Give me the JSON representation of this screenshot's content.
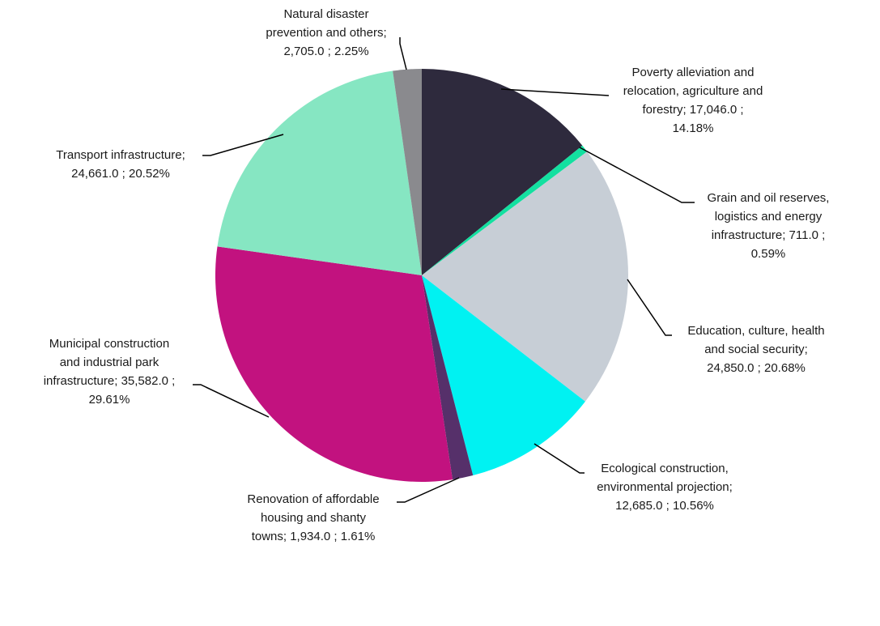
{
  "chart_data": {
    "type": "pie",
    "slices": [
      {
        "lines": [
          "Poverty alleviation  and",
          "relocation, agriculture and",
          "forestry;  17,046.0 ;",
          "14.18%"
        ],
        "value": 17046.0,
        "percent": 14.18,
        "color": "#2e2a3d"
      },
      {
        "lines": [
          "Grain and oil reserves,",
          "logistics and energy",
          "infrastructure;  711.0 ;",
          "0.59%"
        ],
        "value": 711.0,
        "percent": 0.59,
        "color": "#13e0a0"
      },
      {
        "lines": [
          "Education, culture, health",
          "and social security;",
          "24,850.0 ; 20.68%"
        ],
        "value": 24850.0,
        "percent": 20.68,
        "color": "#c7ced6"
      },
      {
        "lines": [
          "Ecological construction,",
          "environmental  projection;",
          "12,685.0 ; 10.56%"
        ],
        "value": 12685.0,
        "percent": 10.56,
        "color": "#00f2f2"
      },
      {
        "lines": [
          "Renovation of affordable",
          "housing and shanty",
          "towns;  1,934.0 ; 1.61%"
        ],
        "value": 1934.0,
        "percent": 1.61,
        "color": "#56306a"
      },
      {
        "lines": [
          "Municipal construction",
          "and industrial park",
          "infrastructure;  35,582.0 ;",
          "29.61%"
        ],
        "value": 35582.0,
        "percent": 29.61,
        "color": "#c2127f"
      },
      {
        "lines": [
          "Transport infrastructure;",
          "24,661.0 ; 20.52%"
        ],
        "value": 24661.0,
        "percent": 20.52,
        "color": "#86e6c2"
      },
      {
        "lines": [
          "Natural disaster",
          "prevention  and others;",
          "2,705.0 ; 2.25%"
        ],
        "value": 2705.0,
        "percent": 2.25,
        "color": "#8a8a8e"
      }
    ],
    "start_angle_deg": 0,
    "direction": "clockwise",
    "legend": "none"
  }
}
